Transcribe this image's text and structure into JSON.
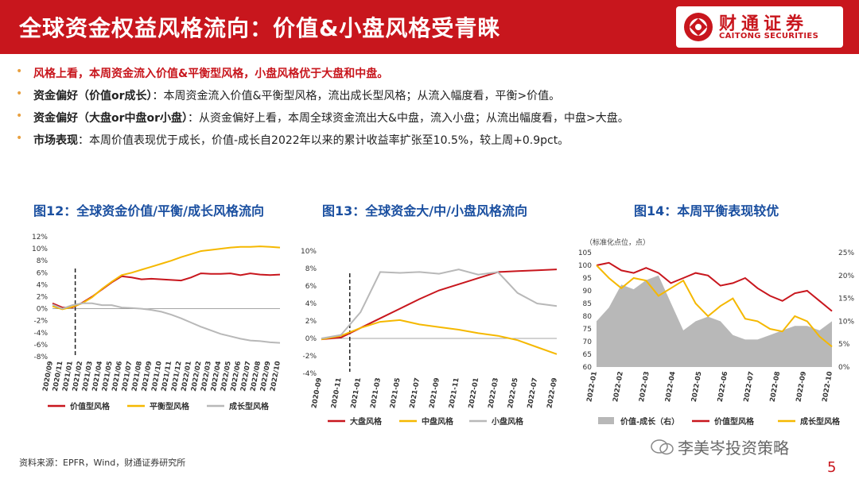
{
  "header": {
    "title": "全球资金权益风格流向：价值&小盘风格受青睐",
    "logo_cn": "财通证券",
    "logo_en": "CAITONG SECURITIES"
  },
  "bullets": [
    {
      "bold": "风格上看，本周资金流入价值&平衡型风格，小盘风格优于大盘和中盘。",
      "text": ""
    },
    {
      "bold": "资金偏好（价值or成长）",
      "text": "：本周资金流入价值&平衡型风格，流出成长型风格；从流入幅度看，平衡>价值。"
    },
    {
      "bold": "资金偏好（大盘or中盘or小盘）",
      "text": "：从资金偏好上看，本周全球资金流出大&中盘，流入小盘；从流出幅度看，中盘>大盘。"
    },
    {
      "bold": "市场表现",
      "text": "：本周价值表现优于成长，价值-成长自2022年以来的累计收益率扩张至10.5%，较上周+0.9pct。"
    }
  ],
  "colors": {
    "red": "#c8161d",
    "yellow": "#f5b800",
    "gray": "#b8b8b8",
    "title_blue": "#1a4fa0"
  },
  "chart_data": [
    {
      "id": "fig12",
      "type": "line",
      "title": "图12：全球资金价值/平衡/成长风格流向",
      "ylim": [
        -8,
        12
      ],
      "yticks": [
        "12%",
        "10%",
        "8%",
        "6%",
        "4%",
        "2%",
        "0%",
        "-2%",
        "-4%",
        "-6%",
        "-8%"
      ],
      "xticks": [
        "2020/09",
        "2020/11",
        "2021/01",
        "2021/02",
        "2021/03",
        "2021/04",
        "2021/05",
        "2021/06",
        "2021/07",
        "2021/08",
        "2021/09",
        "2021/10",
        "2021/11",
        "2021/12",
        "2022/01",
        "2022/02",
        "2022/03",
        "2022/04",
        "2022/05",
        "2022/06",
        "2022/07",
        "2022/08",
        "2022/09",
        "2022/10"
      ],
      "marker_index": 2.3,
      "series": [
        {
          "name": "价值型风格",
          "color": "#c8161d",
          "values": [
            0.9,
            0.2,
            0.2,
            1.0,
            2.0,
            3.2,
            4.4,
            5.4,
            5.2,
            4.9,
            5.0,
            4.9,
            4.8,
            4.7,
            5.2,
            5.9,
            5.8,
            5.8,
            5.9,
            5.6,
            5.9,
            5.7,
            5.6,
            5.7
          ]
        },
        {
          "name": "平衡型风格",
          "color": "#f5b800",
          "values": [
            0.4,
            -0.1,
            0.3,
            0.9,
            1.9,
            3.3,
            4.5,
            5.6,
            6.0,
            6.5,
            7.0,
            7.5,
            8.0,
            8.6,
            9.1,
            9.6,
            9.8,
            10.0,
            10.2,
            10.3,
            10.3,
            10.4,
            10.3,
            10.2
          ]
        },
        {
          "name": "成长型风格",
          "color": "#b8b8b8",
          "values": [
            0.7,
            0.0,
            0.6,
            0.9,
            0.9,
            0.6,
            0.6,
            0.2,
            0.1,
            0.0,
            -0.2,
            -0.5,
            -1.0,
            -1.6,
            -2.3,
            -3.0,
            -3.6,
            -4.2,
            -4.6,
            -5.0,
            -5.3,
            -5.4,
            -5.6,
            -5.7
          ]
        }
      ]
    },
    {
      "id": "fig13",
      "type": "line",
      "title": "图13：全球资金大/中/小盘风格流向",
      "ylim": [
        -4,
        10
      ],
      "yticks": [
        "10%",
        "8%",
        "6%",
        "4%",
        "2%",
        "0%",
        "-2%",
        "-4%"
      ],
      "xticks": [
        "2020-09",
        "2020-11",
        "2021-01",
        "2021-03",
        "2021-05",
        "2021-07",
        "2021-09",
        "2021-11",
        "2022-01",
        "2022-03",
        "2022-05",
        "2022-07",
        "2022-09"
      ],
      "marker_index": 1.45,
      "series": [
        {
          "name": "大盘风格",
          "color": "#c8161d",
          "values": [
            -0.1,
            0.1,
            1.2,
            2.3,
            3.4,
            4.5,
            5.5,
            6.2,
            6.9,
            7.6,
            7.7,
            7.8,
            7.9
          ]
        },
        {
          "name": "中盘风格",
          "color": "#f5b800",
          "values": [
            -0.1,
            0.3,
            1.2,
            1.9,
            2.1,
            1.6,
            1.3,
            1.0,
            0.6,
            0.3,
            -0.2,
            -1.0,
            -1.8
          ]
        },
        {
          "name": "小盘风格",
          "color": "#b8b8b8",
          "values": [
            0.0,
            0.4,
            3.0,
            7.6,
            7.5,
            7.6,
            7.4,
            7.9,
            7.3,
            7.6,
            5.2,
            4.0,
            3.7
          ]
        }
      ]
    },
    {
      "id": "fig14",
      "type": "line",
      "title": "图14：本周平衡表现较优",
      "y_unit_label": "（标准化点位，点）",
      "ylim_left": [
        60,
        105
      ],
      "ylim_right": [
        0,
        25
      ],
      "yticks_left": [
        "105",
        "100",
        "95",
        "90",
        "85",
        "80",
        "75",
        "70",
        "65",
        "60"
      ],
      "yticks_right": [
        "25%",
        "20%",
        "15%",
        "10%",
        "5%",
        "0%"
      ],
      "xticks": [
        "2022-01",
        "2022-02",
        "2022-03",
        "2022-04",
        "2022-05",
        "2022-06",
        "2022-07",
        "2022-08",
        "2022-09",
        "2022-10"
      ],
      "area": {
        "name": "价值-成长（右）",
        "color": "#b8b8b8",
        "values": [
          10,
          13,
          18,
          17,
          19,
          20,
          14,
          8,
          10,
          11,
          10,
          7,
          6,
          6,
          7,
          8,
          9,
          9,
          8,
          10
        ]
      },
      "series": [
        {
          "name": "价值型风格",
          "color": "#c8161d",
          "values": [
            100,
            101,
            98,
            97,
            99,
            97,
            93,
            95,
            97,
            96,
            92,
            93,
            95,
            91,
            88,
            86,
            89,
            90,
            86,
            82
          ]
        },
        {
          "name": "成长型风格",
          "color": "#f5b800",
          "values": [
            100,
            95,
            91,
            95,
            94,
            88,
            91,
            94,
            85,
            80,
            84,
            87,
            79,
            78,
            75,
            74,
            80,
            78,
            72,
            68
          ]
        }
      ]
    }
  ],
  "legends": {
    "fig12": [
      "价值型风格",
      "平衡型风格",
      "成长型风格"
    ],
    "fig13": [
      "大盘风格",
      "中盘风格",
      "小盘风格"
    ],
    "fig14": [
      "价值-成长（右）",
      "价值型风格",
      "成长型风格"
    ]
  },
  "footer": {
    "source": "资料来源：EPFR，Wind，财通证券研究所",
    "watermark": "李美岑投资策略",
    "page": "5"
  }
}
